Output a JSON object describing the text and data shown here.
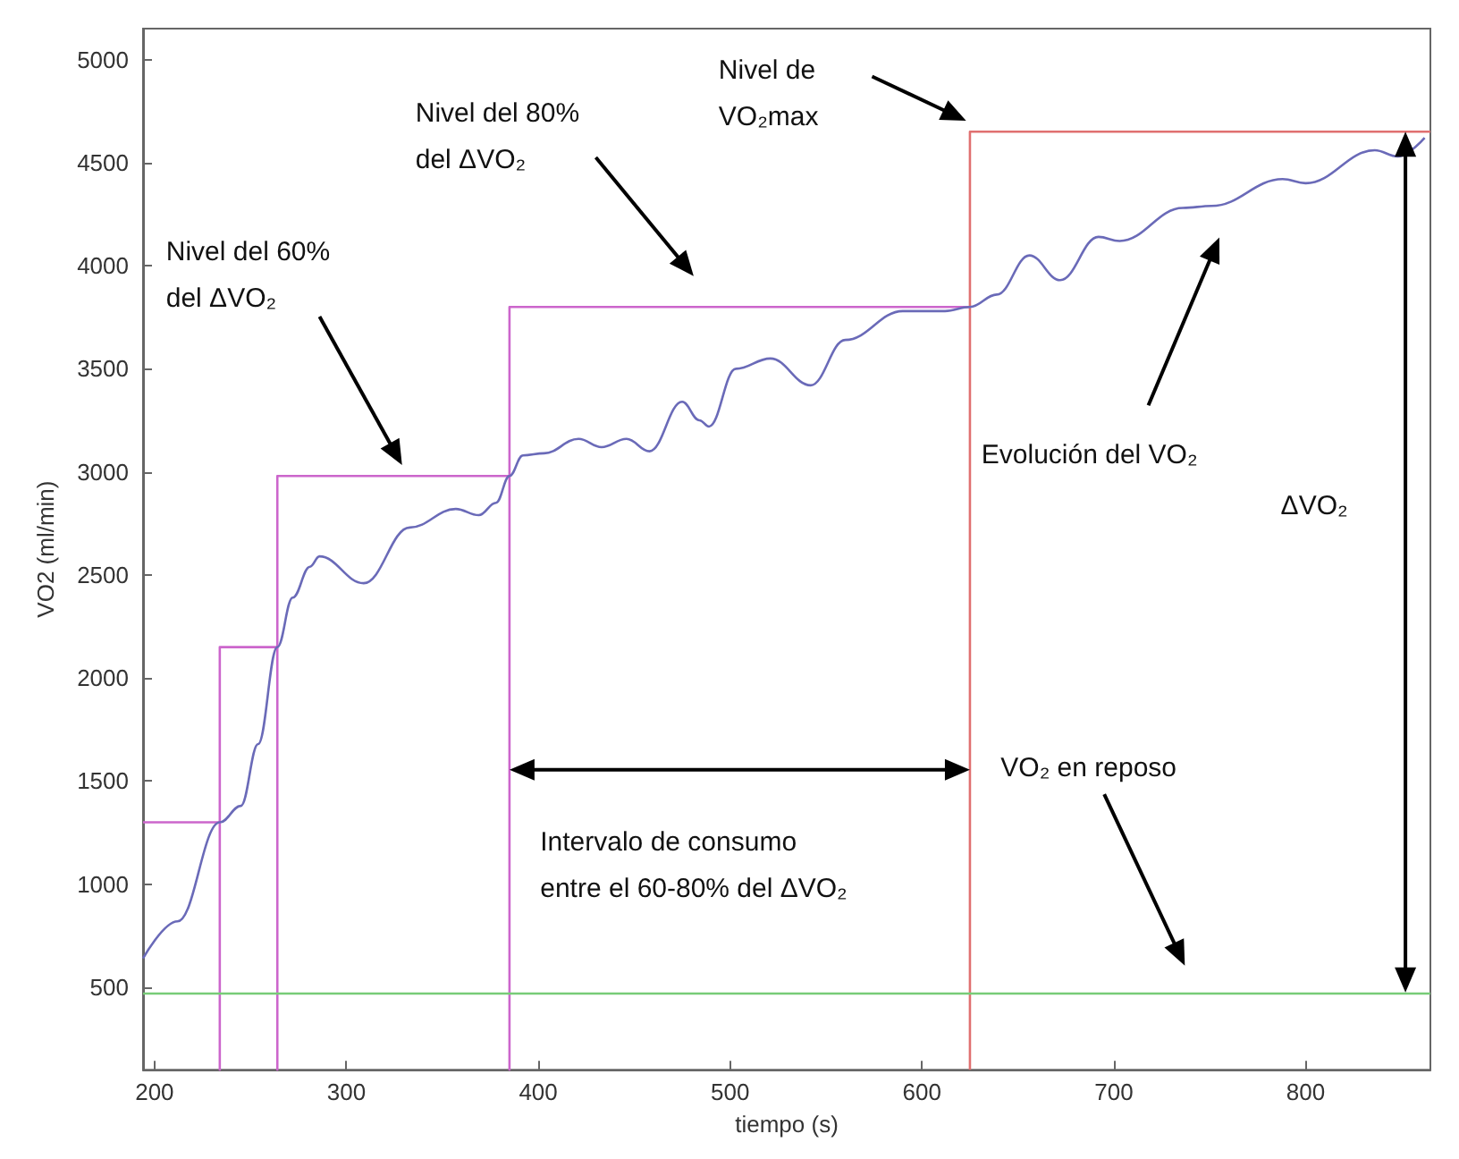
{
  "chart_data": {
    "type": "line",
    "xlabel": "tiempo (s)",
    "ylabel": "VO2 (ml/min)",
    "xlim": [
      194,
      865
    ],
    "ylim": [
      100,
      5150
    ],
    "xticks": [
      200,
      300,
      400,
      500,
      600,
      700,
      800
    ],
    "yticks": [
      500,
      1000,
      1500,
      2000,
      2500,
      3000,
      3500,
      4000,
      4500,
      5000
    ],
    "grid": false,
    "marker": "none",
    "line_style": "solid",
    "series": [
      {
        "color": "#6a6ab8",
        "x": [
          194,
          212,
          234,
          245,
          254,
          264,
          272,
          281,
          286,
          309,
          333,
          357,
          369,
          378,
          385,
          392,
          403,
          421,
          433,
          446,
          458,
          475,
          484,
          489,
          503,
          521,
          542,
          560,
          590,
          612,
          625,
          639,
          656,
          672,
          692,
          703,
          736,
          751,
          788,
          800,
          836,
          848,
          862
        ],
        "values": [
          640,
          820,
          1300,
          1380,
          1680,
          2150,
          2390,
          2540,
          2590,
          2460,
          2730,
          2820,
          2790,
          2850,
          2980,
          3080,
          3090,
          3160,
          3120,
          3160,
          3100,
          3340,
          3250,
          3220,
          3500,
          3550,
          3420,
          3640,
          3780,
          3780,
          3800,
          3860,
          4050,
          3930,
          4140,
          4120,
          4280,
          4290,
          4420,
          4400,
          4560,
          4530,
          4620
        ]
      },
      {
        "color": "#cc66cc",
        "x": [
          194,
          234,
          234,
          234,
          264,
          264,
          264,
          385,
          385,
          385,
          625
        ],
        "values": [
          1300,
          1300,
          100,
          2150,
          2150,
          100,
          2980,
          2980,
          100,
          3800,
          3800
        ]
      },
      {
        "color": "#e07070",
        "x": [
          625,
          625,
          865
        ],
        "values": [
          100,
          4650,
          4650
        ]
      }
    ],
    "ref_lines": [
      {
        "axis": "y",
        "value": 475,
        "color": "#77cc77"
      }
    ],
    "annotations": [
      "Nivel del 60%\ndel ΔVO₂",
      "Nivel del 80%\ndel ΔVO₂",
      "Nivel de\nVO₂max",
      "Evolución del VO₂",
      "ΔVO₂",
      "Intervalo de consumo\nentre el 60-80% del ΔVO₂",
      "VO₂ en reposo"
    ]
  }
}
